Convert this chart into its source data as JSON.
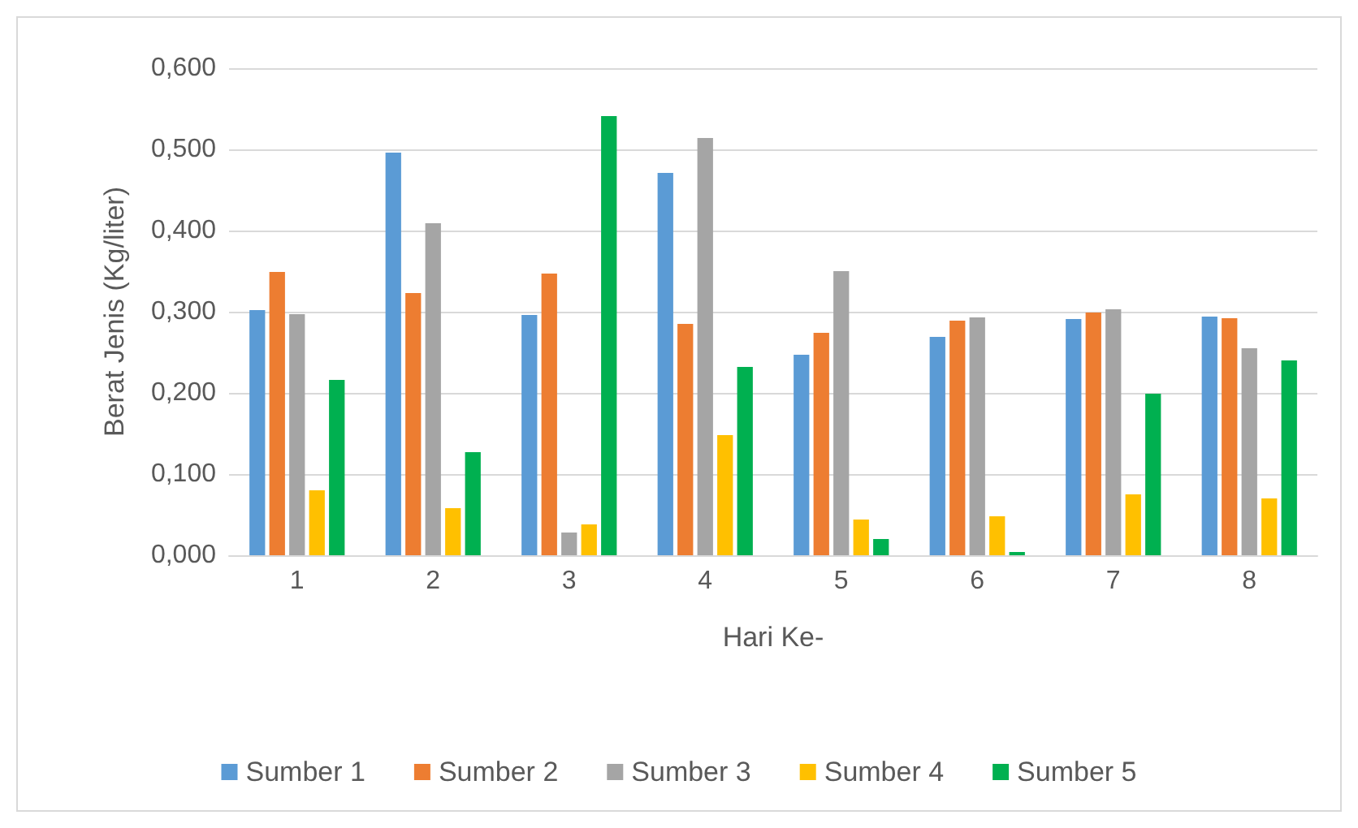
{
  "chart_data": {
    "type": "bar",
    "xlabel": "Hari Ke-",
    "ylabel": "Berat Jenis (Kg/liter)",
    "categories": [
      "1",
      "2",
      "3",
      "4",
      "5",
      "6",
      "7",
      "8"
    ],
    "series": [
      {
        "name": "Sumber 1",
        "color": "#5b9bd5",
        "values": [
          0.302,
          0.496,
          0.296,
          0.471,
          0.247,
          0.269,
          0.291,
          0.294
        ]
      },
      {
        "name": "Sumber 2",
        "color": "#ed7d31",
        "values": [
          0.349,
          0.323,
          0.347,
          0.285,
          0.274,
          0.289,
          0.299,
          0.292
        ]
      },
      {
        "name": "Sumber 3",
        "color": "#a5a5a5",
        "values": [
          0.297,
          0.409,
          0.028,
          0.514,
          0.35,
          0.293,
          0.303,
          0.255
        ]
      },
      {
        "name": "Sumber 4",
        "color": "#ffc000",
        "values": [
          0.08,
          0.058,
          0.038,
          0.148,
          0.044,
          0.048,
          0.075,
          0.07
        ]
      },
      {
        "name": "Sumber 5",
        "color": "#00b050",
        "values": [
          0.216,
          0.127,
          0.541,
          0.232,
          0.02,
          0.004,
          0.199,
          0.24
        ]
      }
    ],
    "ylim": [
      0,
      0.6
    ],
    "yticks": [
      {
        "value": 0,
        "label": "0,000"
      },
      {
        "value": 0.1,
        "label": "0,100"
      },
      {
        "value": 0.2,
        "label": "0,200"
      },
      {
        "value": 0.3,
        "label": "0,300"
      },
      {
        "value": 0.4,
        "label": "0,400"
      },
      {
        "value": 0.5,
        "label": "0,500"
      },
      {
        "value": 0.6,
        "label": "0,600"
      }
    ],
    "grid": "y",
    "legend": "bottom"
  }
}
